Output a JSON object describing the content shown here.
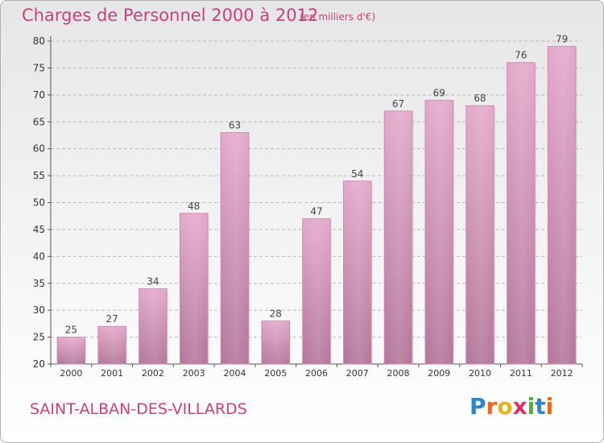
{
  "chart_data": {
    "type": "bar",
    "title": "Charges de Personnel 2000 à 2012",
    "subtitle": "(en milliers d'€)",
    "categories": [
      "2000",
      "2001",
      "2002",
      "2003",
      "2004",
      "2005",
      "2006",
      "2007",
      "2008",
      "2009",
      "2010",
      "2011",
      "2012"
    ],
    "values": [
      25,
      27,
      34,
      48,
      63,
      28,
      47,
      54,
      67,
      69,
      68,
      76,
      79
    ],
    "ylim": [
      20,
      80
    ],
    "yticks": [
      20,
      25,
      30,
      35,
      40,
      45,
      50,
      55,
      60,
      65,
      70,
      75,
      80
    ],
    "grid": true,
    "bar_color": "#d78fb6"
  },
  "location": "SAINT-ALBAN-DES-VILLARDS",
  "brand": {
    "name": "Proxiti",
    "letters": [
      {
        "ch": "P",
        "color": "#2e86c9"
      },
      {
        "ch": "r",
        "color": "#e06a1f"
      },
      {
        "ch": "o",
        "color": "#e9b21a"
      },
      {
        "ch": "x",
        "color": "#d9326b"
      },
      {
        "ch": "i",
        "color": "#4fae3a"
      },
      {
        "ch": "t",
        "color": "#2e86c9"
      },
      {
        "ch": "i",
        "color": "#e06a1f"
      }
    ]
  },
  "colors": {
    "accent": "#c8407e"
  }
}
